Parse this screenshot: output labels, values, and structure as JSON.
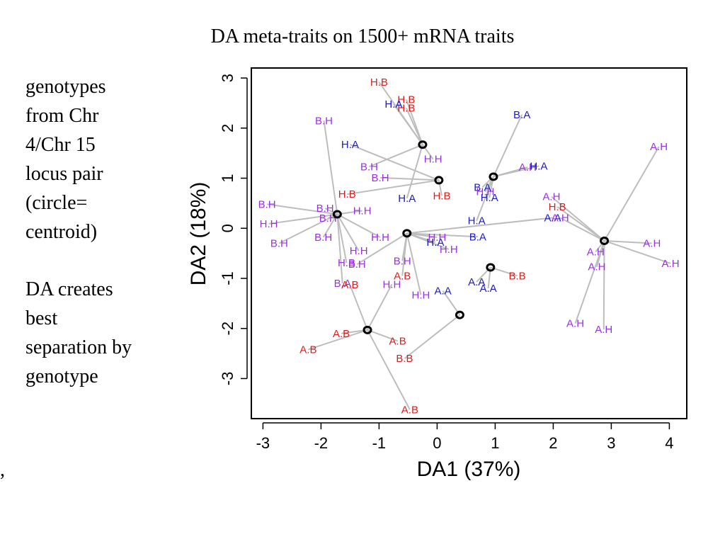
{
  "title": "DA meta-traits on 1500+ mRNA traits",
  "notes": {
    "note1": "genotypes\nfrom Chr\n4/Chr 15\nlocus pair\n(circle=\ncentroid)",
    "note2": "DA creates\nbest\nseparation by\ngenotype"
  },
  "stray_mark": ",",
  "chart_data": {
    "type": "scatter",
    "title": "DA meta-traits on 1500+ mRNA traits",
    "xlabel": "DA1 (37%)",
    "ylabel": "DA2 (18%)",
    "xlim": [
      -3.2,
      4.3
    ],
    "ylim": [
      -3.8,
      3.2
    ],
    "xticks": [
      "-3",
      "-2",
      "-1",
      "0",
      "1",
      "2",
      "3",
      "4"
    ],
    "yticks": [
      "-3",
      "-2",
      "-1",
      "0",
      "1",
      "2",
      "3"
    ],
    "grid": false,
    "colors": {
      "red": "#e01b1b",
      "blue": "#1a1acc",
      "purple": "#9b30e0",
      "segment": "#bdbdbd",
      "centroid": "#000000"
    },
    "centroids": [
      {
        "id": "c1",
        "x": -0.25,
        "y": 1.67
      },
      {
        "id": "c2",
        "x": 0.03,
        "y": 0.96
      },
      {
        "id": "c3",
        "x": 0.97,
        "y": 1.03
      },
      {
        "id": "c4",
        "x": -1.72,
        "y": 0.28
      },
      {
        "id": "c5",
        "x": -0.52,
        "y": -0.1
      },
      {
        "id": "c6",
        "x": 2.88,
        "y": -0.25
      },
      {
        "id": "c7",
        "x": 0.92,
        "y": -0.78
      },
      {
        "id": "c8",
        "x": 0.39,
        "y": -1.73
      },
      {
        "id": "c9",
        "x": -1.2,
        "y": -2.03
      }
    ],
    "points": [
      {
        "label": "H.B",
        "x": -1.0,
        "y": 2.92,
        "color": "red",
        "c": "c1"
      },
      {
        "label": "H.B",
        "x": -0.53,
        "y": 2.57,
        "color": "red",
        "c": "c1"
      },
      {
        "label": "H.B",
        "x": -0.53,
        "y": 2.4,
        "color": "red",
        "c": "c1"
      },
      {
        "label": "H.A",
        "x": -0.75,
        "y": 2.48,
        "color": "blue",
        "c": "c1"
      },
      {
        "label": "H.H",
        "x": -0.07,
        "y": 1.38,
        "color": "purple",
        "c": "c1"
      },
      {
        "label": "H.A",
        "x": -1.5,
        "y": 1.67,
        "color": "blue",
        "c": "c2"
      },
      {
        "label": "B.H",
        "x": -1.17,
        "y": 1.23,
        "color": "purple",
        "c": "c1"
      },
      {
        "label": "B.H",
        "x": -0.98,
        "y": 1.01,
        "color": "purple",
        "c": "c2"
      },
      {
        "label": "H.B",
        "x": -1.55,
        "y": 0.68,
        "color": "red",
        "c": "c2"
      },
      {
        "label": "H.B",
        "x": 0.08,
        "y": 0.65,
        "color": "red",
        "c": "c2"
      },
      {
        "label": "H.A",
        "x": -0.52,
        "y": 0.6,
        "color": "blue",
        "c": "c1"
      },
      {
        "label": "B.A",
        "x": 0.78,
        "y": 0.82,
        "color": "blue",
        "c": "c3"
      },
      {
        "label": "H.H",
        "x": 0.83,
        "y": 0.73,
        "color": "purple",
        "c": "c3"
      },
      {
        "label": "H.A",
        "x": 0.9,
        "y": 0.61,
        "color": "blue",
        "c": "c3"
      },
      {
        "label": "B.A",
        "x": 1.46,
        "y": 2.27,
        "color": "blue",
        "c": "c3"
      },
      {
        "label": "A.H",
        "x": 1.56,
        "y": 1.22,
        "color": "purple",
        "c": "c3"
      },
      {
        "label": "H.A",
        "x": 1.75,
        "y": 1.24,
        "color": "blue",
        "c": "c3"
      },
      {
        "label": "A.H",
        "x": 1.97,
        "y": 0.63,
        "color": "purple",
        "c": "c6"
      },
      {
        "label": "H.B",
        "x": 2.07,
        "y": 0.43,
        "color": "red",
        "c": "c6"
      },
      {
        "label": "A.A",
        "x": 1.99,
        "y": 0.21,
        "color": "blue",
        "c": "c5"
      },
      {
        "label": "A.H",
        "x": 2.12,
        "y": 0.21,
        "color": "purple",
        "c": "c6"
      },
      {
        "label": "A.H",
        "x": 3.82,
        "y": 1.63,
        "color": "purple",
        "c": "c6"
      },
      {
        "label": "A.H",
        "x": 3.7,
        "y": -0.3,
        "color": "purple",
        "c": "c6"
      },
      {
        "label": "A.H",
        "x": 4.02,
        "y": -0.7,
        "color": "purple",
        "c": "c6"
      },
      {
        "label": "A.H",
        "x": 2.73,
        "y": -0.47,
        "color": "purple",
        "c": "c6"
      },
      {
        "label": "A.H",
        "x": 2.75,
        "y": -0.77,
        "color": "purple",
        "c": "c6"
      },
      {
        "label": "A.H",
        "x": 2.38,
        "y": -1.9,
        "color": "purple",
        "c": "c6"
      },
      {
        "label": "A.H",
        "x": 2.87,
        "y": -2.02,
        "color": "purple",
        "c": "c6"
      },
      {
        "label": "H.A",
        "x": 0.68,
        "y": 0.15,
        "color": "blue",
        "c": "c3"
      },
      {
        "label": "B.A",
        "x": 0.7,
        "y": -0.17,
        "color": "blue",
        "c": "c5"
      },
      {
        "label": "B.H",
        "x": -1.95,
        "y": 2.15,
        "color": "purple",
        "c": "c4"
      },
      {
        "label": "B.H",
        "x": -2.93,
        "y": 0.48,
        "color": "purple",
        "c": "c4"
      },
      {
        "label": "B.H",
        "x": -1.93,
        "y": 0.4,
        "color": "purple",
        "c": "c4"
      },
      {
        "label": "B.H",
        "x": -1.88,
        "y": 0.2,
        "color": "purple",
        "c": "c4"
      },
      {
        "label": "H.H",
        "x": -2.9,
        "y": 0.09,
        "color": "purple",
        "c": "c4"
      },
      {
        "label": "B.H",
        "x": -2.72,
        "y": -0.3,
        "color": "purple",
        "c": "c4"
      },
      {
        "label": "B.H",
        "x": -1.96,
        "y": -0.18,
        "color": "purple",
        "c": "c4"
      },
      {
        "label": "H.H",
        "x": -1.29,
        "y": 0.35,
        "color": "purple",
        "c": "c4"
      },
      {
        "label": "H.H",
        "x": -0.98,
        "y": -0.18,
        "color": "purple",
        "c": "c4"
      },
      {
        "label": "H.H",
        "x": 0.0,
        "y": -0.18,
        "color": "purple",
        "c": "c5"
      },
      {
        "label": "H.A",
        "x": -0.03,
        "y": -0.28,
        "color": "blue",
        "c": "c5"
      },
      {
        "label": "H.H",
        "x": 0.2,
        "y": -0.42,
        "color": "purple",
        "c": "c5"
      },
      {
        "label": "H.H",
        "x": -1.35,
        "y": -0.45,
        "color": "purple",
        "c": "c4"
      },
      {
        "label": "H.B",
        "x": -1.56,
        "y": -0.69,
        "color": "purple",
        "c": "c4"
      },
      {
        "label": "B.H",
        "x": -1.38,
        "y": -0.72,
        "color": "purple",
        "c": "c5"
      },
      {
        "label": "B.H",
        "x": -0.6,
        "y": -0.65,
        "color": "purple",
        "c": "c5"
      },
      {
        "label": "A.B",
        "x": -0.6,
        "y": -0.95,
        "color": "red",
        "c": "c5"
      },
      {
        "label": "B.A",
        "x": -1.63,
        "y": -1.1,
        "color": "purple",
        "c": "c4"
      },
      {
        "label": "A.B",
        "x": -1.5,
        "y": -1.13,
        "color": "red",
        "c": "c9"
      },
      {
        "label": "H.H",
        "x": -0.78,
        "y": -1.12,
        "color": "purple",
        "c": "c9"
      },
      {
        "label": "H.H",
        "x": -0.28,
        "y": -1.33,
        "color": "purple",
        "c": "c5"
      },
      {
        "label": "A.A",
        "x": 0.1,
        "y": -1.25,
        "color": "blue",
        "c": "c8"
      },
      {
        "label": "A.A",
        "x": 0.68,
        "y": -1.07,
        "color": "blue",
        "c": "c7"
      },
      {
        "label": "A.A",
        "x": 0.88,
        "y": -1.2,
        "color": "blue",
        "c": "c7"
      },
      {
        "label": "B.B",
        "x": 1.38,
        "y": -0.95,
        "color": "red",
        "c": "c7"
      },
      {
        "label": "A.B",
        "x": -1.65,
        "y": -2.1,
        "color": "red",
        "c": "c9"
      },
      {
        "label": "A.B",
        "x": -2.22,
        "y": -2.42,
        "color": "red",
        "c": "c9"
      },
      {
        "label": "A.B",
        "x": -0.68,
        "y": -2.25,
        "color": "red",
        "c": "c9"
      },
      {
        "label": "B.B",
        "x": -0.56,
        "y": -2.6,
        "color": "red",
        "c": "c8"
      },
      {
        "label": "A.B",
        "x": -0.47,
        "y": -3.62,
        "color": "red",
        "c": "c9"
      }
    ]
  }
}
